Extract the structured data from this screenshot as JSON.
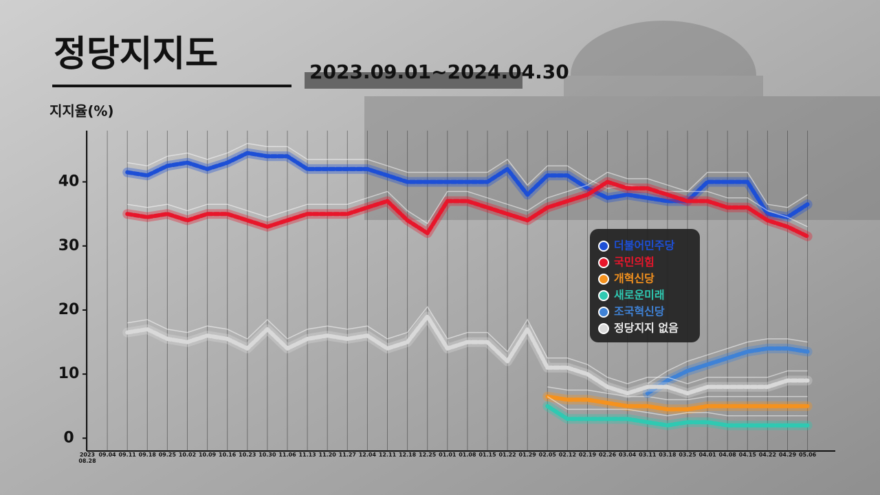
{
  "chart_data": {
    "type": "line",
    "title": "정당지지도",
    "subtitle": "2023.09.01~2024.04.30",
    "y_label": "지지율(%)",
    "categories": [
      "2023\n08.28",
      "09.04",
      "09.11",
      "09.18",
      "09.25",
      "10.02",
      "10.09",
      "10.16",
      "10.23",
      "10.30",
      "11.06",
      "11.13",
      "11.20",
      "11.27",
      "12.04",
      "12.11",
      "12.18",
      "12.25",
      "01.01",
      "01.08",
      "01.15",
      "01.22",
      "01.29",
      "02.05",
      "02.12",
      "02.19",
      "02.26",
      "03.04",
      "03.11",
      "03.18",
      "03.25",
      "04.01",
      "04.08",
      "04.15",
      "04.22",
      "04.29",
      "05.06"
    ],
    "ylim": [
      -2,
      48
    ],
    "yticks": [
      0,
      10,
      20,
      30,
      40
    ],
    "legend": "right",
    "series": [
      {
        "name": "더불어민주당",
        "color": "#1d4fd6",
        "values": [
          null,
          null,
          41.5,
          41,
          42.5,
          43,
          42,
          43,
          44.5,
          44,
          44,
          42,
          42,
          42,
          42,
          41,
          40,
          40,
          40,
          40,
          40,
          42,
          38,
          41,
          41,
          39,
          37.5,
          38,
          37.5,
          37,
          37,
          40,
          40,
          40,
          35,
          34.5,
          36.5
        ]
      },
      {
        "name": "국민의힘",
        "color": "#e8162b",
        "values": [
          null,
          null,
          35,
          34.5,
          35,
          34,
          35,
          35,
          34,
          33,
          34,
          35,
          35,
          35,
          36,
          37,
          34,
          32,
          37,
          37,
          36,
          35,
          34,
          36,
          37,
          38,
          40,
          39,
          39,
          38,
          37,
          37,
          36,
          36,
          34,
          33,
          31.5
        ]
      },
      {
        "name": "개혁신당",
        "color": "#f5921e",
        "values": [
          null,
          null,
          null,
          null,
          null,
          null,
          null,
          null,
          null,
          null,
          null,
          null,
          null,
          null,
          null,
          null,
          null,
          null,
          null,
          null,
          null,
          null,
          null,
          6.5,
          6,
          6,
          5.5,
          5,
          5,
          4.5,
          4.5,
          5,
          5,
          5,
          5,
          5,
          5
        ]
      },
      {
        "name": "새로운미래",
        "color": "#2fc9b2",
        "values": [
          null,
          null,
          null,
          null,
          null,
          null,
          null,
          null,
          null,
          null,
          null,
          null,
          null,
          null,
          null,
          null,
          null,
          null,
          null,
          null,
          null,
          null,
          null,
          5,
          3,
          3,
          3,
          3,
          2.5,
          2,
          2.5,
          2.5,
          2,
          2,
          2,
          2,
          2
        ]
      },
      {
        "name": "조국혁신당",
        "color": "#3f82d6",
        "values": [
          null,
          null,
          null,
          null,
          null,
          null,
          null,
          null,
          null,
          null,
          null,
          null,
          null,
          null,
          null,
          null,
          null,
          null,
          null,
          null,
          null,
          null,
          null,
          null,
          null,
          null,
          null,
          null,
          7,
          9,
          10.5,
          11.5,
          12.5,
          13.5,
          14,
          14,
          13.5
        ]
      },
      {
        "name": "정당지지 없음",
        "color": "#d9d9d9",
        "values": [
          null,
          null,
          16.5,
          17,
          15.5,
          15,
          16,
          15.5,
          14,
          17,
          14,
          15.5,
          16,
          15.5,
          16,
          14,
          15,
          19,
          14,
          15,
          15,
          12,
          17,
          11,
          11,
          10,
          8,
          7,
          8,
          8,
          7,
          8,
          8,
          8,
          8,
          9,
          9
        ]
      }
    ]
  }
}
